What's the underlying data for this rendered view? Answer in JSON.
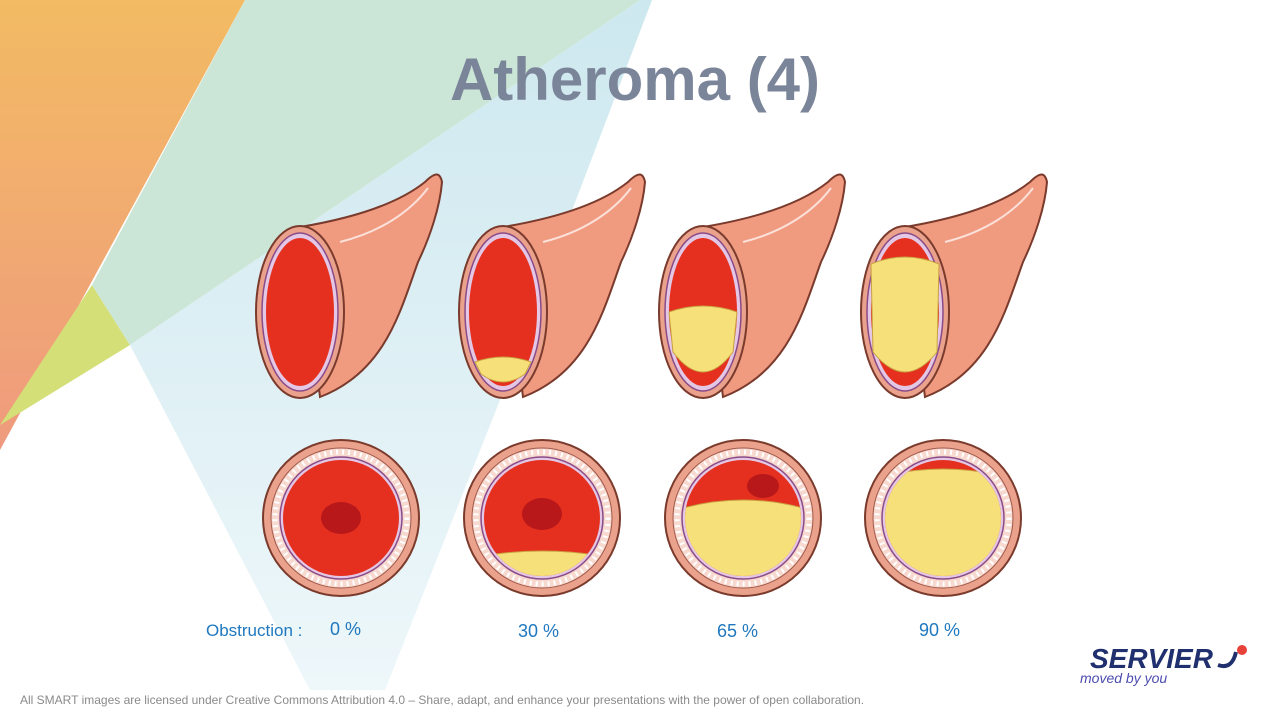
{
  "header": {
    "title": "Atheroma (4)"
  },
  "labels": {
    "caption": "Obstruction :",
    "values": [
      "0 %",
      "30 %",
      "65 %",
      "90 %"
    ]
  },
  "footer": "All SMART images are licensed under Creative Commons Attribution 4.0 – Share, adapt, and enhance your presentations with the power of open collaboration.",
  "logo": {
    "name": "SERVIER",
    "tagline": "moved by you"
  }
}
